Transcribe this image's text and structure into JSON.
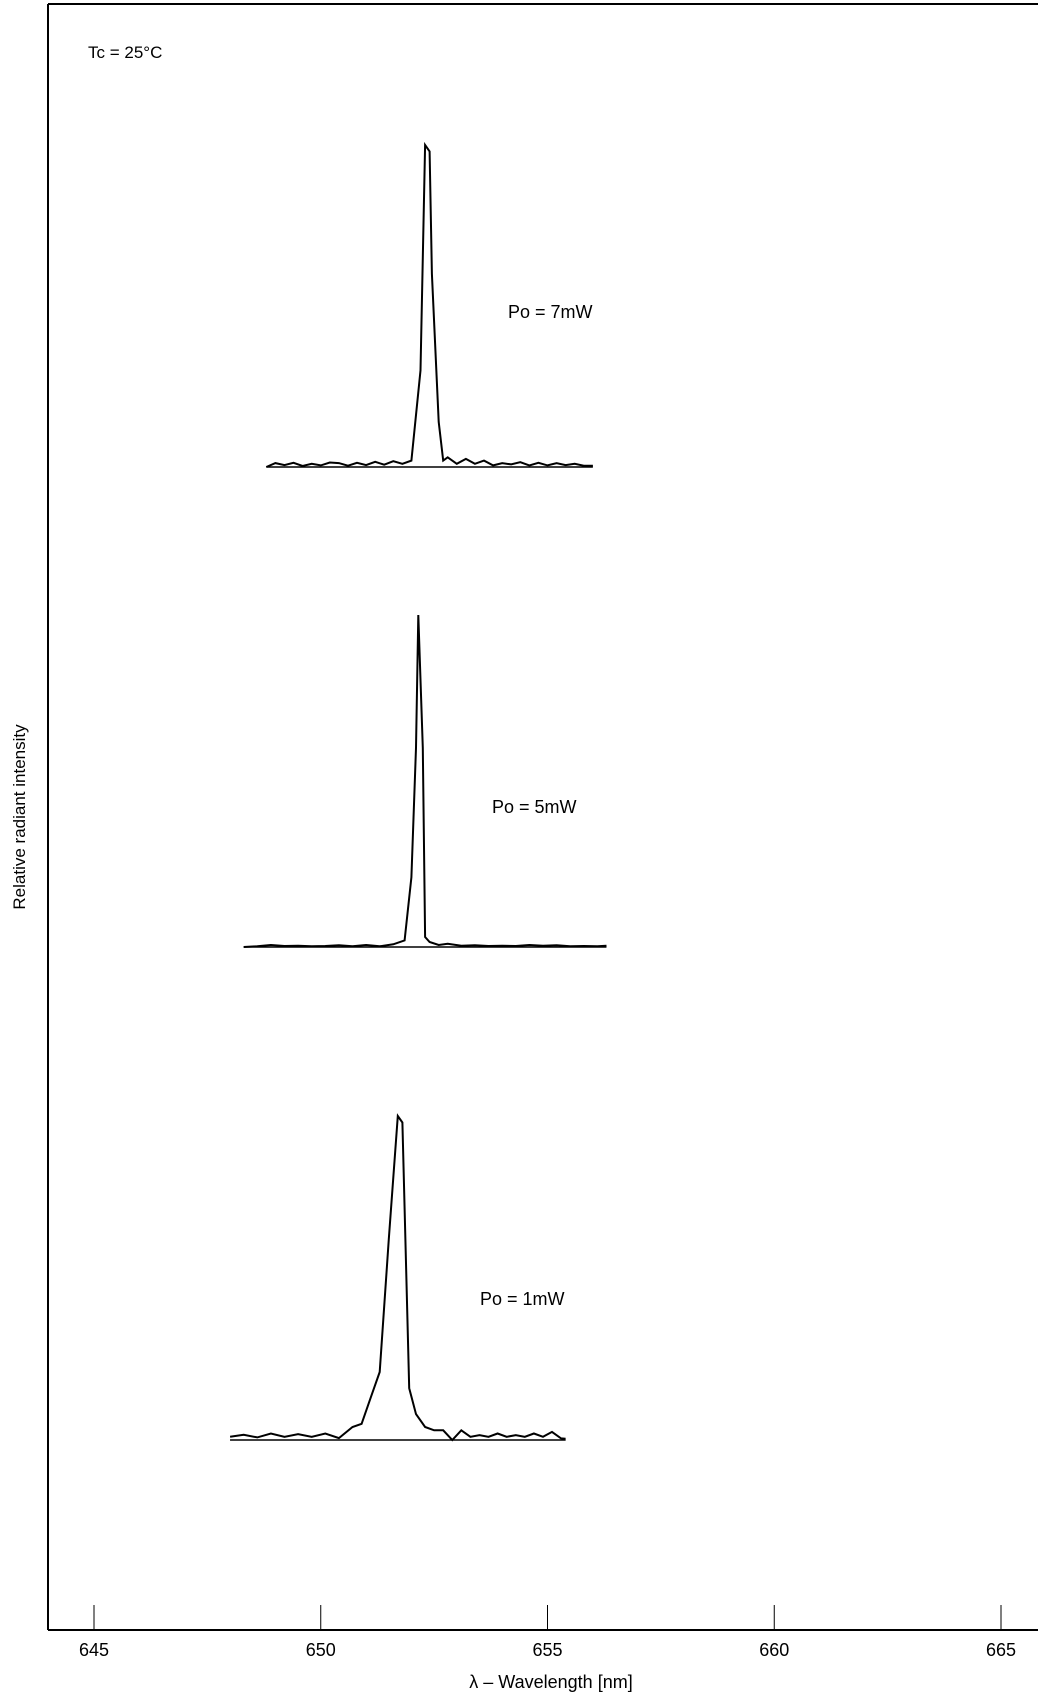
{
  "chart_data": {
    "type": "line",
    "title": "",
    "xlabel": "λ – Wavelength [nm]",
    "ylabel": "Relative radiant intensity",
    "annotation": "Tc = 25°C",
    "xlim": [
      644,
      666
    ],
    "ylim": [
      0,
      1
    ],
    "x_ticks": [
      645,
      650,
      655,
      660,
      665
    ],
    "grid": false,
    "legend": "none",
    "line_color": "#000000",
    "series": [
      {
        "name": "Po = 7mW",
        "x": [
          648.8,
          649.0,
          649.2,
          649.4,
          649.6,
          649.8,
          650.0,
          650.2,
          650.4,
          650.6,
          650.8,
          651.0,
          651.2,
          651.4,
          651.6,
          651.8,
          652.0,
          652.2,
          652.3,
          652.4,
          652.45,
          652.6,
          652.7,
          652.8,
          653.0,
          653.2,
          653.4,
          653.6,
          653.8,
          654.0,
          654.2,
          654.4,
          654.6,
          654.8,
          655.0,
          655.2,
          655.4,
          655.6,
          655.8,
          656.0
        ],
        "y": [
          0.0,
          0.012,
          0.006,
          0.013,
          0.003,
          0.01,
          0.005,
          0.014,
          0.012,
          0.004,
          0.013,
          0.006,
          0.016,
          0.007,
          0.018,
          0.01,
          0.02,
          0.3,
          1.0,
          0.98,
          0.6,
          0.14,
          0.02,
          0.03,
          0.01,
          0.025,
          0.01,
          0.02,
          0.005,
          0.012,
          0.008,
          0.015,
          0.005,
          0.013,
          0.005,
          0.012,
          0.006,
          0.01,
          0.004,
          0.004
        ]
      },
      {
        "name": "Po = 5mW",
        "x": [
          648.3,
          648.6,
          648.9,
          649.2,
          649.5,
          649.8,
          650.1,
          650.4,
          650.7,
          651.0,
          651.3,
          651.6,
          651.85,
          652.0,
          652.1,
          652.15,
          652.25,
          652.3,
          652.4,
          652.6,
          652.8,
          653.1,
          653.4,
          653.7,
          654.0,
          654.3,
          654.6,
          654.9,
          655.2,
          655.5,
          655.8,
          656.1,
          656.3
        ],
        "y": [
          0.0,
          0.002,
          0.006,
          0.003,
          0.004,
          0.002,
          0.003,
          0.005,
          0.002,
          0.006,
          0.002,
          0.008,
          0.02,
          0.21,
          0.6,
          1.0,
          0.6,
          0.03,
          0.015,
          0.006,
          0.01,
          0.004,
          0.005,
          0.003,
          0.004,
          0.003,
          0.006,
          0.004,
          0.005,
          0.002,
          0.003,
          0.002,
          0.004
        ]
      },
      {
        "name": "Po = 1mW",
        "x": [
          648.0,
          648.3,
          648.6,
          648.9,
          649.2,
          649.5,
          649.8,
          650.1,
          650.4,
          650.7,
          650.9,
          651.1,
          651.3,
          651.5,
          651.7,
          651.8,
          651.95,
          652.1,
          652.3,
          652.5,
          652.7,
          652.9,
          653.1,
          653.3,
          653.5,
          653.7,
          653.9,
          654.1,
          654.3,
          654.5,
          654.7,
          654.9,
          655.1,
          655.3,
          655.4
        ],
        "y": [
          0.01,
          0.016,
          0.008,
          0.02,
          0.01,
          0.018,
          0.01,
          0.02,
          0.006,
          0.04,
          0.05,
          0.13,
          0.21,
          0.62,
          1.0,
          0.98,
          0.16,
          0.08,
          0.04,
          0.03,
          0.03,
          0.0,
          0.03,
          0.01,
          0.015,
          0.01,
          0.02,
          0.01,
          0.015,
          0.01,
          0.02,
          0.01,
          0.025,
          0.005,
          0.004
        ]
      }
    ]
  }
}
